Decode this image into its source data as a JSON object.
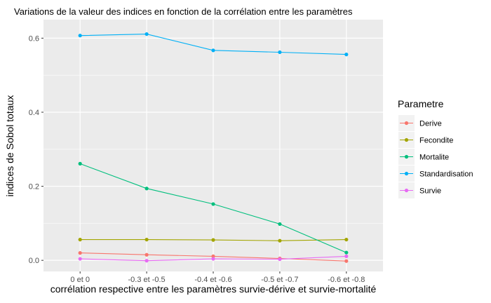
{
  "chart_data": {
    "type": "line",
    "title": "Variations de la valeur des indices en fonction de la corrélation entre les paramètres",
    "xlabel": "corrélation respective entre les paramètres survie-dérive et survie-mortalité",
    "ylabel": "indices de Sobol totaux",
    "categories": [
      "0 et 0",
      "-0.3 et -0.5",
      "-0.4 et -0.6",
      "-0.5 et -0.7",
      "-0.6 et -0.8"
    ],
    "y_ticks": [
      0.0,
      0.2,
      0.4,
      0.6
    ],
    "y_tick_labels": [
      "0.0",
      "0.2",
      "0.4",
      "0.6"
    ],
    "ylim": [
      -0.03,
      0.65
    ],
    "grid": true,
    "legend": {
      "title": "Parametre",
      "position": "right"
    },
    "series": [
      {
        "name": "Derive",
        "color": "#F8766D",
        "values": [
          0.02,
          0.015,
          0.011,
          0.005,
          -0.002
        ]
      },
      {
        "name": "Fecondite",
        "color": "#A3A500",
        "values": [
          0.056,
          0.056,
          0.055,
          0.053,
          0.056
        ]
      },
      {
        "name": "Mortalite",
        "color": "#00BF7D",
        "values": [
          0.261,
          0.194,
          0.152,
          0.098,
          0.021
        ]
      },
      {
        "name": "Standardisation",
        "color": "#00B0F6",
        "values": [
          0.607,
          0.611,
          0.567,
          0.562,
          0.556
        ]
      },
      {
        "name": "Survie",
        "color": "#E76BF3",
        "values": [
          0.004,
          -0.001,
          0.004,
          0.003,
          0.011
        ]
      }
    ]
  }
}
